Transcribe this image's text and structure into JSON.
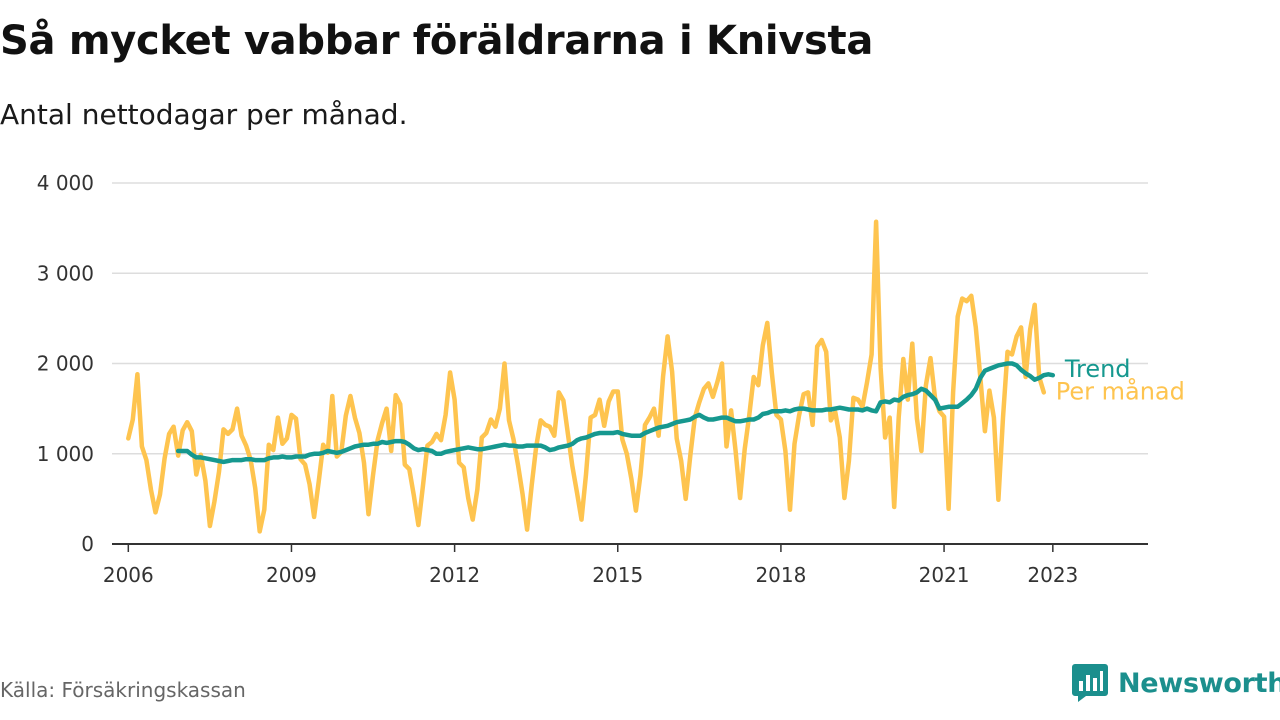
{
  "title": "Så mycket vabbar föräldrarna i Knivsta",
  "subtitle": "Antal nettodagar per månad.",
  "source": "Källa: Försäkringskassan",
  "brand": {
    "name": "Newsworthy",
    "icon": "newsworthy-logo-icon",
    "color": "#1b8f8d"
  },
  "colors": {
    "monthly": "#fec44f",
    "trend": "#16988f",
    "grid": "#dddddd",
    "axis": "#333333"
  },
  "chart_data": {
    "type": "line",
    "title": "Så mycket vabbar föräldrarna i Knivsta",
    "subtitle": "Antal nettodagar per månad.",
    "xlabel": "",
    "ylabel": "",
    "xlim": [
      2005.7,
      2024.75
    ],
    "ylim": [
      0,
      4000
    ],
    "yticks": [
      0,
      1000,
      2000,
      3000,
      4000
    ],
    "ytick_labels": [
      "0",
      "1 000",
      "2 000",
      "3 000",
      "4 000"
    ],
    "xticks": [
      2006,
      2009,
      2012,
      2015,
      2018,
      2021,
      2023
    ],
    "xtick_labels": [
      "2006",
      "2009",
      "2012",
      "2015",
      "2018",
      "2021",
      "2023"
    ],
    "grid": true,
    "series": [
      {
        "name": "Per månad",
        "color": "#fec44f",
        "x_start": 2006.0,
        "x_step": 0.0833333,
        "values": [
          1170,
          1380,
          1880,
          1080,
          930,
          600,
          350,
          550,
          950,
          1220,
          1300,
          980,
          1260,
          1350,
          1250,
          770,
          990,
          700,
          200,
          470,
          800,
          1270,
          1220,
          1270,
          1500,
          1200,
          1090,
          930,
          620,
          140,
          380,
          1100,
          1040,
          1400,
          1110,
          1170,
          1430,
          1390,
          940,
          880,
          660,
          300,
          690,
          1100,
          1010,
          1640,
          970,
          1020,
          1420,
          1640,
          1400,
          1230,
          900,
          330,
          760,
          1150,
          1340,
          1500,
          1030,
          1650,
          1550,
          880,
          830,
          540,
          210,
          640,
          1090,
          1130,
          1220,
          1150,
          1430,
          1900,
          1600,
          900,
          850,
          510,
          270,
          600,
          1180,
          1230,
          1380,
          1300,
          1500,
          2000,
          1370,
          1160,
          870,
          550,
          160,
          650,
          1080,
          1370,
          1320,
          1300,
          1200,
          1680,
          1590,
          1220,
          860,
          570,
          270,
          770,
          1400,
          1430,
          1600,
          1310,
          1580,
          1690,
          1690,
          1160,
          1000,
          720,
          370,
          760,
          1320,
          1400,
          1500,
          1200,
          1860,
          2300,
          1910,
          1170,
          920,
          500,
          980,
          1400,
          1570,
          1720,
          1780,
          1630,
          1800,
          2000,
          1080,
          1480,
          1030,
          510,
          1050,
          1420,
          1850,
          1760,
          2200,
          2450,
          1900,
          1430,
          1380,
          1030,
          380,
          1110,
          1420,
          1660,
          1680,
          1320,
          2190,
          2260,
          2130,
          1370,
          1460,
          1180,
          510,
          920,
          1620,
          1600,
          1520,
          1790,
          2100,
          3570,
          1950,
          1180,
          1400,
          410,
          1400,
          2050,
          1600,
          2220,
          1390,
          1030,
          1760,
          2060,
          1620,
          1470,
          1410,
          390,
          1680,
          2520,
          2720,
          2690,
          2750,
          2400,
          1850,
          1250,
          1700,
          1400,
          490,
          1400,
          2130,
          2100,
          2300,
          2400,
          1850,
          2380,
          2650,
          1850,
          1680
        ],
        "end_label": "Per månad"
      },
      {
        "name": "Trend",
        "color": "#16988f",
        "x_start": 2006.917,
        "x_step": 0.0833333,
        "values": [
          1030,
          1030,
          1030,
          990,
          960,
          960,
          950,
          940,
          930,
          920,
          910,
          920,
          930,
          930,
          930,
          940,
          940,
          930,
          930,
          930,
          950,
          960,
          960,
          970,
          960,
          960,
          970,
          970,
          970,
          990,
          1000,
          1000,
          1010,
          1030,
          1020,
          1010,
          1020,
          1040,
          1060,
          1080,
          1090,
          1100,
          1100,
          1110,
          1110,
          1130,
          1120,
          1130,
          1140,
          1140,
          1130,
          1100,
          1060,
          1040,
          1050,
          1040,
          1030,
          1000,
          1000,
          1020,
          1030,
          1040,
          1050,
          1060,
          1070,
          1060,
          1050,
          1050,
          1060,
          1070,
          1080,
          1090,
          1100,
          1090,
          1090,
          1080,
          1080,
          1090,
          1090,
          1090,
          1090,
          1070,
          1040,
          1050,
          1070,
          1080,
          1090,
          1110,
          1150,
          1170,
          1180,
          1200,
          1220,
          1230,
          1230,
          1230,
          1230,
          1240,
          1220,
          1210,
          1200,
          1200,
          1200,
          1230,
          1250,
          1270,
          1290,
          1300,
          1310,
          1330,
          1350,
          1360,
          1370,
          1380,
          1410,
          1430,
          1400,
          1380,
          1380,
          1390,
          1400,
          1400,
          1380,
          1360,
          1360,
          1370,
          1380,
          1380,
          1400,
          1440,
          1450,
          1470,
          1470,
          1470,
          1480,
          1470,
          1490,
          1500,
          1500,
          1490,
          1480,
          1480,
          1480,
          1490,
          1490,
          1500,
          1510,
          1500,
          1490,
          1490,
          1490,
          1480,
          1500,
          1480,
          1470,
          1570,
          1580,
          1570,
          1600,
          1590,
          1630,
          1650,
          1660,
          1680,
          1720,
          1700,
          1650,
          1600,
          1500,
          1510,
          1520,
          1520,
          1520,
          1560,
          1600,
          1650,
          1720,
          1840,
          1920,
          1940,
          1960,
          1980,
          1990,
          2000,
          2000,
          1980,
          1930,
          1890,
          1860,
          1820,
          1840,
          1870,
          1880,
          1870
        ],
        "end_label": "Trend"
      }
    ]
  }
}
